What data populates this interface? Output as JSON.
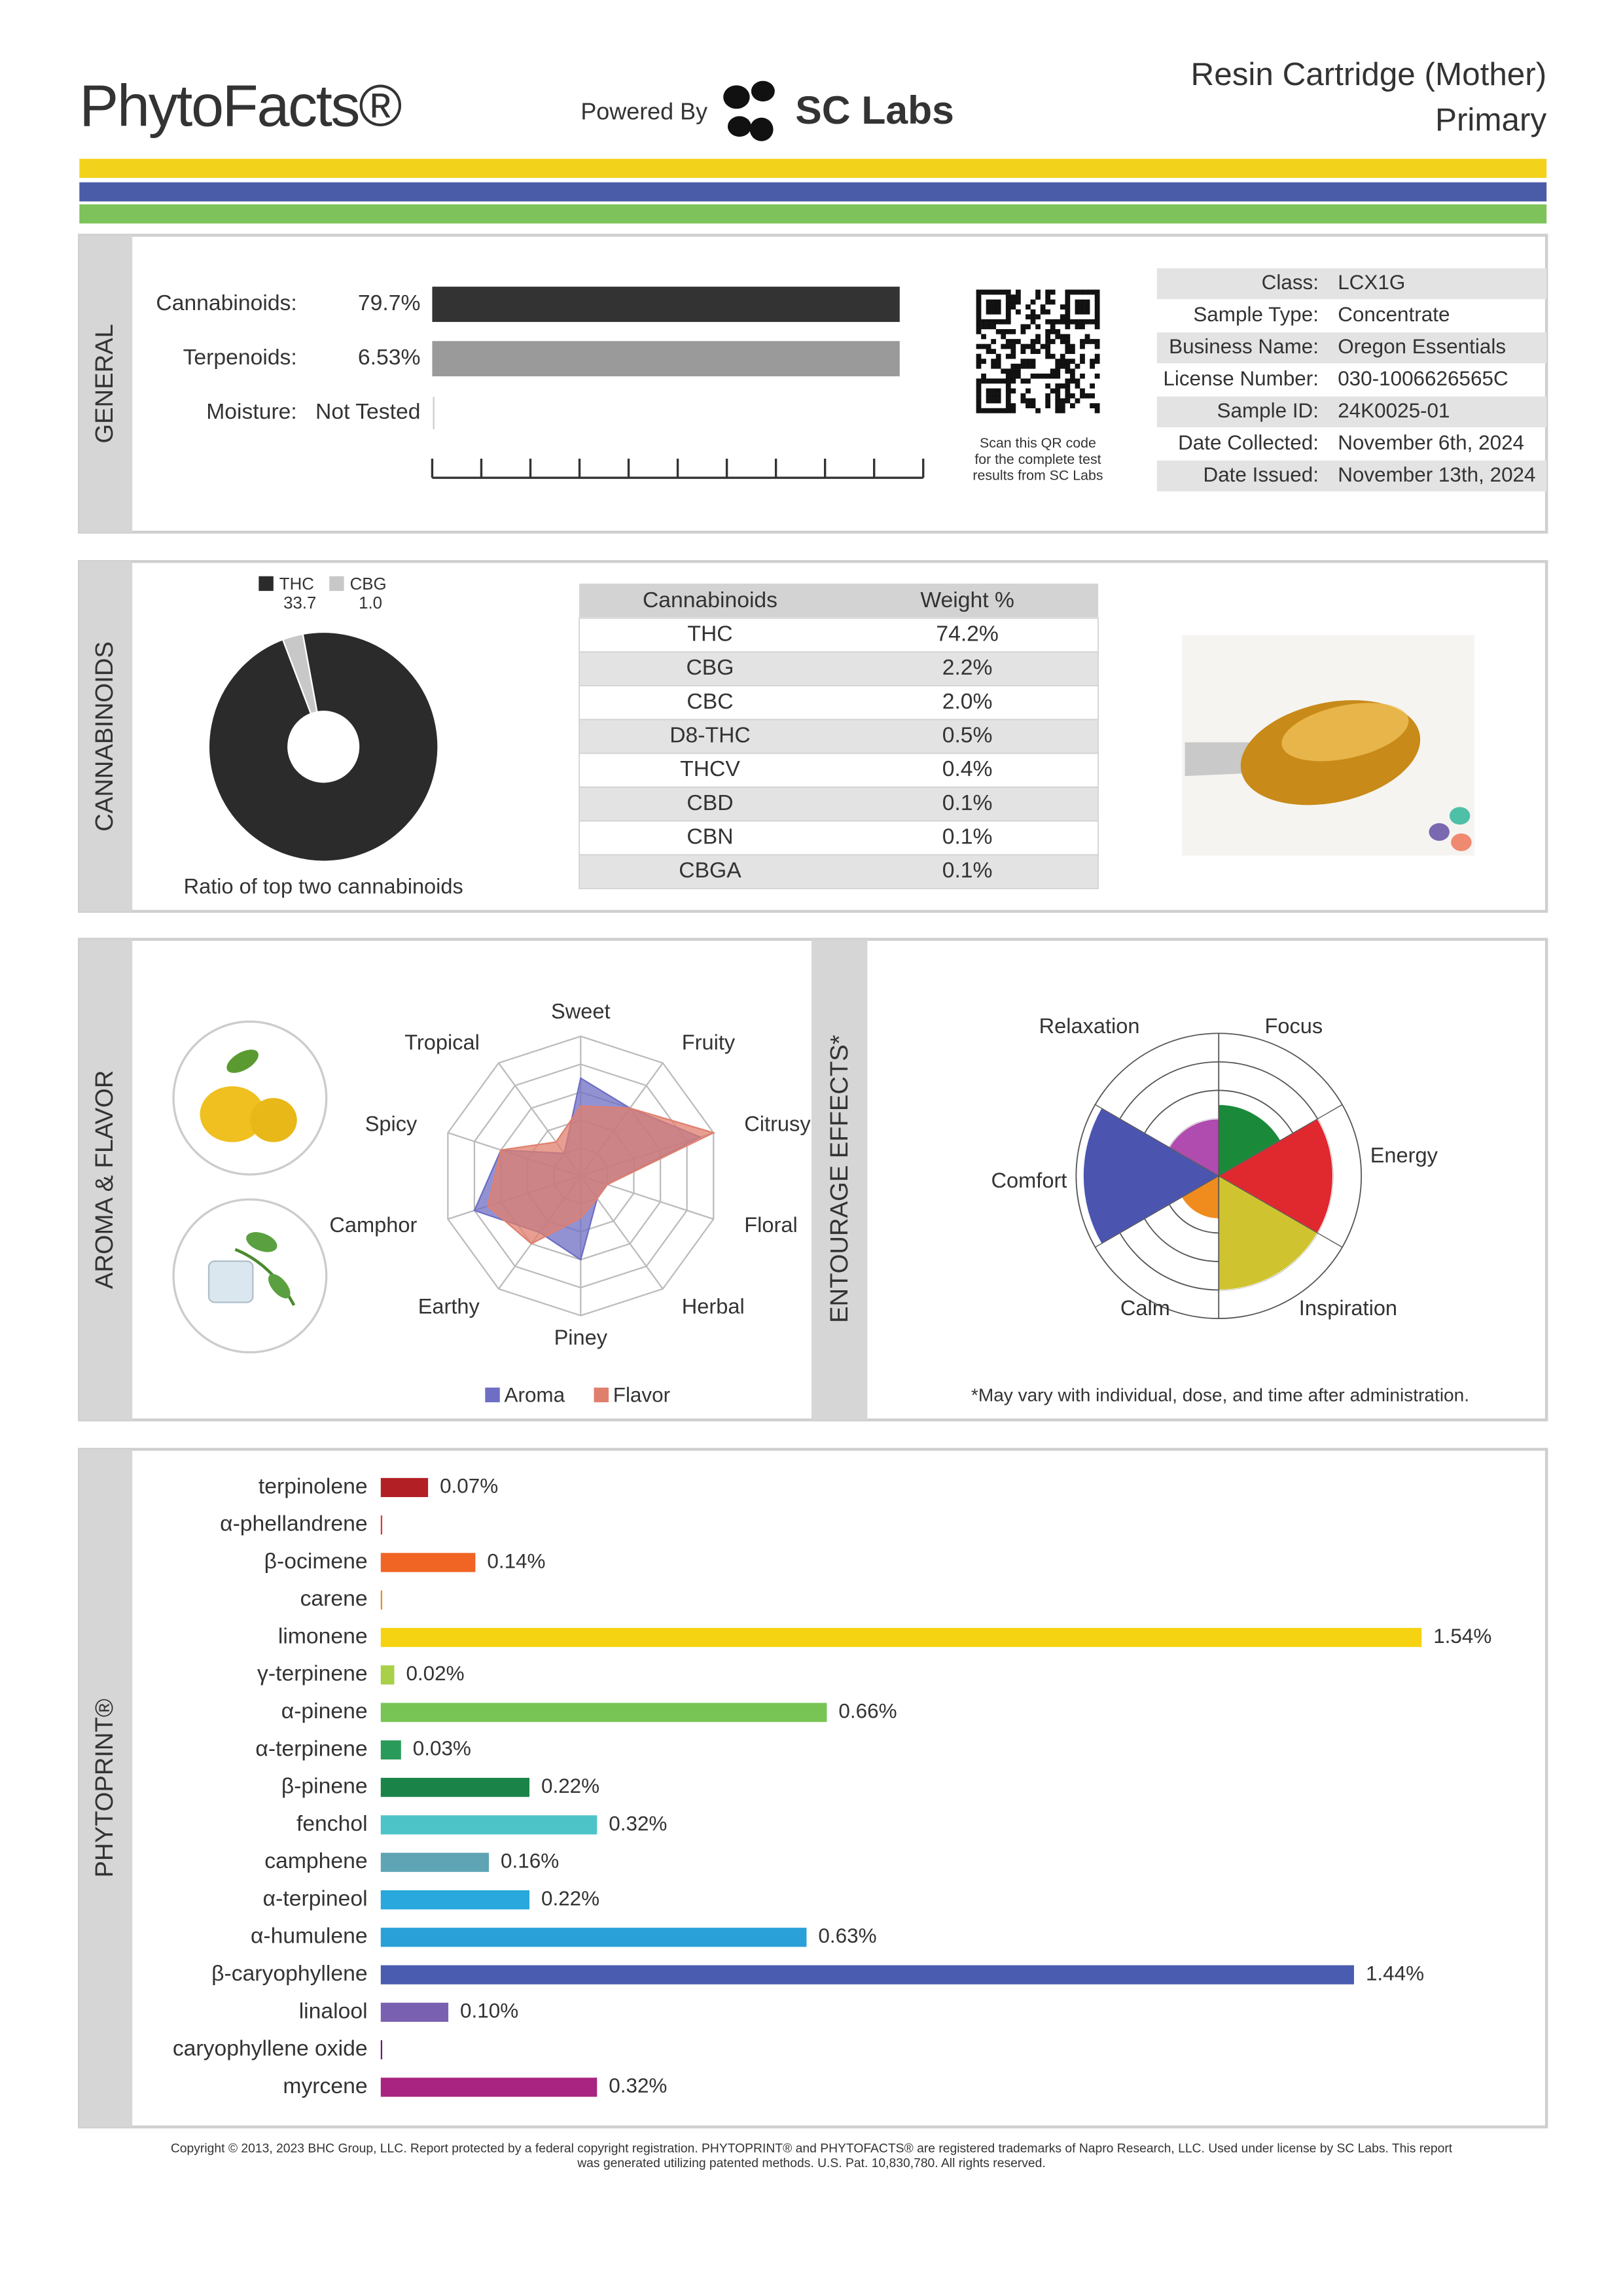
{
  "header": {
    "title": "PhytoFacts®",
    "powered_by": "Powered By",
    "lab": "SC Labs",
    "product": "Resin Cartridge (Mother)",
    "sample_kind": "Primary"
  },
  "general": {
    "section": "GENERAL",
    "rows": [
      {
        "label": "Cannabinoids:",
        "value": "79.7%"
      },
      {
        "label": "Terpenoids:",
        "value": "6.53%"
      },
      {
        "label": "Moisture:",
        "value": "Not Tested"
      }
    ],
    "qr_note": [
      "Scan this QR code",
      "for the complete test",
      "results from SC Labs"
    ],
    "info": [
      [
        "Class:",
        "LCX1G"
      ],
      [
        "Sample Type:",
        "Concentrate"
      ],
      [
        "Business Name:",
        "Oregon Essentials"
      ],
      [
        "License Number:",
        "030-1006626565C"
      ],
      [
        "Sample ID:",
        "24K0025-01"
      ],
      [
        "Date Collected:",
        "November 6th, 2024"
      ],
      [
        "Date Issued:",
        "November 13th, 2024"
      ]
    ]
  },
  "cannabinoids": {
    "section": "CANNABINOIDS",
    "ratio_chart": {
      "type": "pie",
      "categories": [
        "THC",
        "CBG"
      ],
      "values": [
        33.7,
        1.0
      ],
      "value_labels": [
        "33.7",
        "1.0"
      ],
      "colors": [
        "#2b2b2b",
        "#c8c8c8"
      ],
      "caption": "Ratio of top two cannabinoids"
    },
    "table": {
      "header": [
        "Cannabinoids",
        "Weight %"
      ],
      "rows": [
        [
          "THC",
          "74.2%"
        ],
        [
          "CBG",
          "2.2%"
        ],
        [
          "CBC",
          "2.0%"
        ],
        [
          "D8-THC",
          "0.5%"
        ],
        [
          "THCV",
          "0.4%"
        ],
        [
          "CBD",
          "0.1%"
        ],
        [
          "CBN",
          "0.1%"
        ],
        [
          "CBGA",
          "0.1%"
        ]
      ]
    }
  },
  "aroma": {
    "section": "AROMA & FLAVOR",
    "chart": {
      "type": "radar",
      "categories": [
        "Sweet",
        "Fruity",
        "Citrusy",
        "Floral",
        "Herbal",
        "Piney",
        "Earthy",
        "Camphor",
        "Spicy",
        "Tropical"
      ],
      "rlim": [
        0,
        5
      ],
      "rticks": [
        1,
        2,
        3,
        4,
        5
      ],
      "series": [
        {
          "name": "Aroma",
          "color": "#6e6ec4",
          "values": [
            3.5,
            3,
            4.5,
            1,
            1,
            3,
            2.5,
            4,
            3,
            1
          ]
        },
        {
          "name": "Flavor",
          "color": "#e07f6e",
          "values": [
            2.5,
            3,
            5,
            1,
            1,
            1.5,
            3,
            3.5,
            3,
            1.5
          ]
        }
      ]
    }
  },
  "entourage": {
    "section": "ENTOURAGE EFFECTS*",
    "chart": {
      "type": "polar-area",
      "categories": [
        "Relaxation",
        "Focus",
        "Energy",
        "Inspiration",
        "Calm",
        "Comfort"
      ],
      "colors": [
        "#b04bb0",
        "#1a8a3a",
        "#e0282f",
        "#cfc430",
        "#f08c1e",
        "#4b55b0"
      ],
      "values": [
        2,
        2.5,
        4,
        4,
        1.5,
        4.75
      ],
      "rlim": [
        0,
        5
      ],
      "rticks": [
        1,
        2,
        3,
        4,
        5
      ]
    },
    "note": "*May vary with individual, dose, and time after administration."
  },
  "phytoprint": {
    "section": "PHYTOPRINT®",
    "chart": {
      "type": "bar",
      "orientation": "horizontal",
      "categories": [
        "terpinolene",
        "α-phellandrene",
        "β-ocimene",
        "carene",
        "limonene",
        "γ-terpinene",
        "α-pinene",
        "α-terpinene",
        "β-pinene",
        "fenchol",
        "camphene",
        "α-terpineol",
        "α-humulene",
        "β-caryophyllene",
        "linalool",
        "caryophyllene oxide",
        "myrcene"
      ],
      "values": [
        0.07,
        0,
        0.14,
        0,
        1.54,
        0.02,
        0.66,
        0.03,
        0.22,
        0.32,
        0.16,
        0.22,
        0.63,
        1.44,
        0.1,
        0,
        0.32
      ],
      "value_labels": [
        "0.07%",
        null,
        "0.14%",
        null,
        "1.54%",
        "0.02%",
        "0.66%",
        "0.03%",
        "0.22%",
        "0.32%",
        "0.16%",
        "0.22%",
        "0.63%",
        "1.44%",
        "0.10%",
        null,
        "0.32%"
      ],
      "colors": [
        "#b22025",
        "#e0363a",
        "#f06424",
        "#e88a2a",
        "#f6d312",
        "#a8d048",
        "#78c454",
        "#2a9a5a",
        "#1a8448",
        "#4cc4c8",
        "#5ea4b4",
        "#28a8dc",
        "#2aa0d8",
        "#4a5cb0",
        "#7a60b0",
        "#6a2060",
        "#a82480"
      ],
      "label_colors": [
        "#a01c22",
        "#d02a2e",
        "#d84a1a",
        "#c87020",
        "#8c7a12",
        "#6a9a28",
        "#3a9a3a",
        "#1a8a4a",
        "#1a7a40",
        "#1a9aa0",
        "#2a8a9a",
        "#1a88c0",
        "#2a78c0",
        "#3a4aa0",
        "#6a50a0",
        "#5a1a50",
        "#a01a78"
      ]
    }
  },
  "footer": [
    "Copyright © 2013, 2023 BHC Group, LLC. Report protected by a federal copyright registration. PHYTOPRINT® and PHYTOFACTS® are registered trademarks of Napro Research, LLC. Used under license by SC Labs. This report",
    "was generated utilizing patented methods. U.S. Pat. 10,830,780. All rights reserved."
  ]
}
